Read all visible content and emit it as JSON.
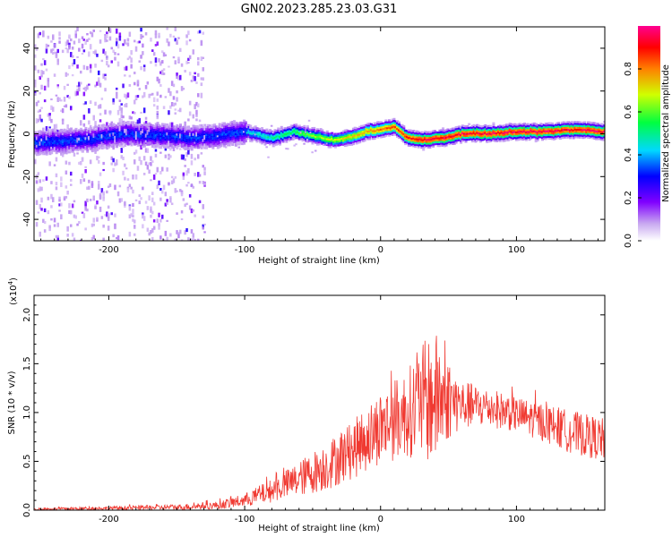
{
  "title": "GN02.2023.285.23.03.G31",
  "colors": {
    "snr_line": "#f03a32",
    "axis": "#000000"
  },
  "chart_data": [
    {
      "type": "heatmap",
      "xlabel": "Height of straight line (km)",
      "ylabel": "Frequency (Hz)",
      "xlim": [
        -255,
        165
      ],
      "ylim": [
        -50,
        50
      ],
      "xticks": [
        -200,
        -100,
        0,
        100
      ],
      "yticks": [
        -40,
        -20,
        0,
        20,
        40
      ],
      "colorbar": {
        "label": "Normalized spectral amplitude",
        "range": [
          0,
          1
        ],
        "ticks": [
          "0.0",
          "0.2",
          "0.4",
          "0.6",
          "0.8"
        ],
        "colormap": [
          "#ffffff",
          "#a020f0",
          "#0000ff",
          "#00e5ff",
          "#00ff00",
          "#ffff00",
          "#ff0000",
          "#ff00a0"
        ]
      },
      "ridge": {
        "x": [
          -250,
          -220,
          -190,
          -160,
          -140,
          -120,
          -100,
          -80,
          -65,
          -50,
          -35,
          -20,
          -10,
          0,
          10,
          20,
          30,
          45,
          60,
          80,
          100,
          120,
          140,
          165
        ],
        "frequency": [
          -4,
          -3,
          0,
          -1,
          -2,
          -1,
          1,
          -2,
          1,
          -1,
          -3,
          -1,
          1,
          2,
          3,
          -2,
          -3,
          -2,
          0,
          0,
          1,
          1,
          2,
          1
        ]
      }
    },
    {
      "type": "line",
      "xlabel": "Height of straight line (km)",
      "ylabel": "SNR (10 * v/v)",
      "y_multiplier": "(x10",
      "y_multiplier_exp": "4",
      "y_multiplier_close": ")",
      "xlim": [
        -255,
        165
      ],
      "ylim": [
        0,
        2.2
      ],
      "xticks": [
        -200,
        -100,
        0,
        100
      ],
      "yticks": [
        "0.0",
        "0.5",
        "1.0",
        "1.5",
        "2.0"
      ],
      "envelope": {
        "x": [
          -255,
          -200,
          -150,
          -120,
          -100,
          -80,
          -60,
          -40,
          -20,
          0,
          20,
          30,
          40,
          50,
          60,
          80,
          100,
          120,
          140,
          165
        ],
        "mean": [
          0.01,
          0.02,
          0.03,
          0.05,
          0.1,
          0.2,
          0.32,
          0.45,
          0.62,
          0.85,
          1.0,
          1.1,
          1.15,
          1.12,
          1.08,
          1.05,
          0.98,
          0.9,
          0.8,
          0.72
        ],
        "spread": [
          0.01,
          0.02,
          0.03,
          0.04,
          0.07,
          0.12,
          0.18,
          0.25,
          0.3,
          0.38,
          0.45,
          0.6,
          0.7,
          0.4,
          0.25,
          0.2,
          0.18,
          0.2,
          0.22,
          0.22
        ]
      }
    }
  ]
}
